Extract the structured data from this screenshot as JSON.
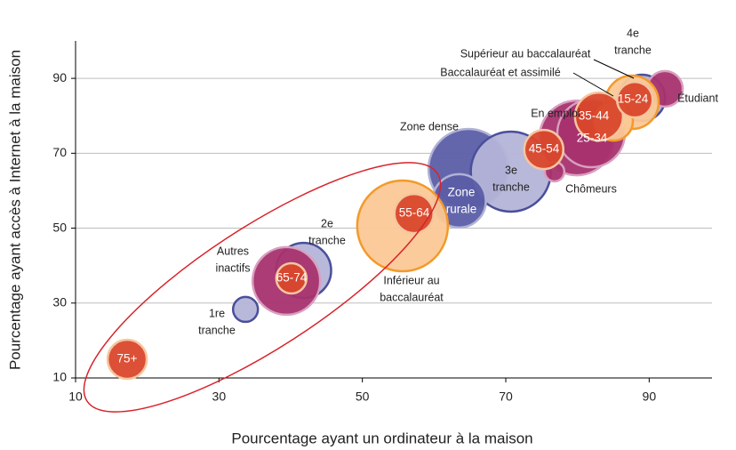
{
  "chart_data": {
    "type": "scatter",
    "x_label": "Pourcentage ayant un ordinateur à la maison",
    "y_label": "Pourcentage ayant accès à Internet à la maison",
    "xlim": [
      10,
      100
    ],
    "ylim": [
      10,
      100
    ],
    "xticks": [
      10,
      30,
      50,
      70,
      90
    ],
    "yticks": [
      10,
      30,
      50,
      70,
      90
    ],
    "grid": true,
    "points": [
      {
        "label": [
          "Zone dense"
        ],
        "x": 64.8,
        "y": 65.8,
        "size": 45,
        "color": "#5b5ea6"
      },
      {
        "label": [
          "3e",
          "tranche"
        ],
        "x": 70.7,
        "y": 65.1,
        "size": 45,
        "color": "#b4b4d8"
      },
      {
        "label": [
          "Zone",
          "rurale"
        ],
        "x": 63.5,
        "y": 57.3,
        "size": 30,
        "color": "#5b5ea6"
      },
      {
        "label": [
          "Inférieur au",
          "baccalauréat"
        ],
        "x": 55.6,
        "y": 50.6,
        "size": 51,
        "color": "#fbc896"
      },
      {
        "label": [
          "2e",
          "tranche"
        ],
        "x": 41.8,
        "y": 38.7,
        "size": 31,
        "color": "#b4b4d8"
      },
      {
        "label": [
          "Autres",
          "inactifs"
        ],
        "x": 39.4,
        "y": 35.9,
        "size": 38,
        "color": "#a8326e"
      },
      {
        "label": [
          "1re",
          "tranche"
        ],
        "x": 33.7,
        "y": 28.3,
        "size": 14,
        "color": "#b4b4d8"
      },
      {
        "label": [
          "65-74"
        ],
        "x": 40.1,
        "y": 36.6,
        "size": 17,
        "color": "#d9472b"
      },
      {
        "label": [
          "55-64"
        ],
        "x": 57.2,
        "y": 53.9,
        "size": 22,
        "color": "#d9472b"
      },
      {
        "label": [
          "75+"
        ],
        "x": 17.2,
        "y": 15.0,
        "size": 22,
        "color": "#d9472b"
      },
      {
        "label": [
          "En emploi"
        ],
        "x": 79.9,
        "y": 74.1,
        "size": 42,
        "color": "#a8326e"
      },
      {
        "label": [
          "25-34"
        ],
        "x": 81.9,
        "y": 75.3,
        "size": 38,
        "color": "#a8326e"
      },
      {
        "label": [
          "Chômeurs"
        ],
        "x": 76.8,
        "y": 65.1,
        "size": 11,
        "color": "#a8326e"
      },
      {
        "label": [
          "45-54"
        ],
        "x": 75.3,
        "y": 71.0,
        "size": 22,
        "color": "#d9472b"
      },
      {
        "label": [
          "4e",
          "tranche"
        ],
        "x": 89.0,
        "y": 84.8,
        "size": 26,
        "color": "#b4b4d8"
      },
      {
        "label": [
          "Étudiant"
        ],
        "x": 92.2,
        "y": 87.2,
        "size": 20,
        "color": "#a8326e"
      },
      {
        "label": [
          "Supérieur au baccalauréat"
        ],
        "x": 87.6,
        "y": 83.6,
        "size": 30,
        "color": "#fbc896"
      },
      {
        "label": [
          "Baccalauréat et assimilé"
        ],
        "x": 85.0,
        "y": 78.6,
        "size": 22,
        "color": "#fbc896"
      },
      {
        "label": [
          "35-44"
        ],
        "x": 83.0,
        "y": 79.8,
        "size": 27,
        "color": "#d9472b"
      },
      {
        "label": [
          "15-24"
        ],
        "x": 88.0,
        "y": 84.3,
        "size": 20,
        "color": "#d9472b"
      }
    ]
  }
}
